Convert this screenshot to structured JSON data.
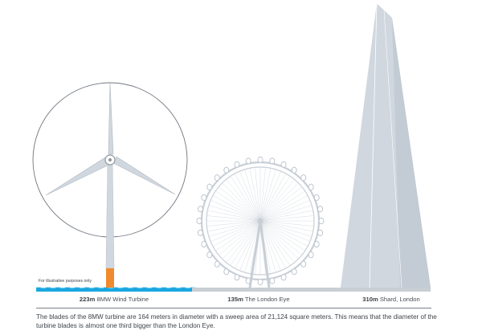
{
  "disclaimer": "For illustrative purposes only",
  "structures": [
    {
      "height_label": "223m",
      "name": "8MW Wind Turbine",
      "height_m": 223,
      "rotor_diameter_m": 164
    },
    {
      "height_label": "135m",
      "name": "The London Eye",
      "height_m": 135
    },
    {
      "height_label": "310m",
      "name": "Shard, London",
      "height_m": 310
    }
  ],
  "description": "The blades of the 8MW turbine are 164 meters in diameter with a sweep area of 21,124 square meters. This means that the diameter of the turbine blades is almost one third bigger than the London Eye.",
  "colors": {
    "structure_fill": "#d0d7df",
    "outline": "#7f8891",
    "turbine_base": "#ef8a2e",
    "water": "#1aa7e0",
    "ground": "#c9ced4",
    "text": "#3f444a"
  }
}
